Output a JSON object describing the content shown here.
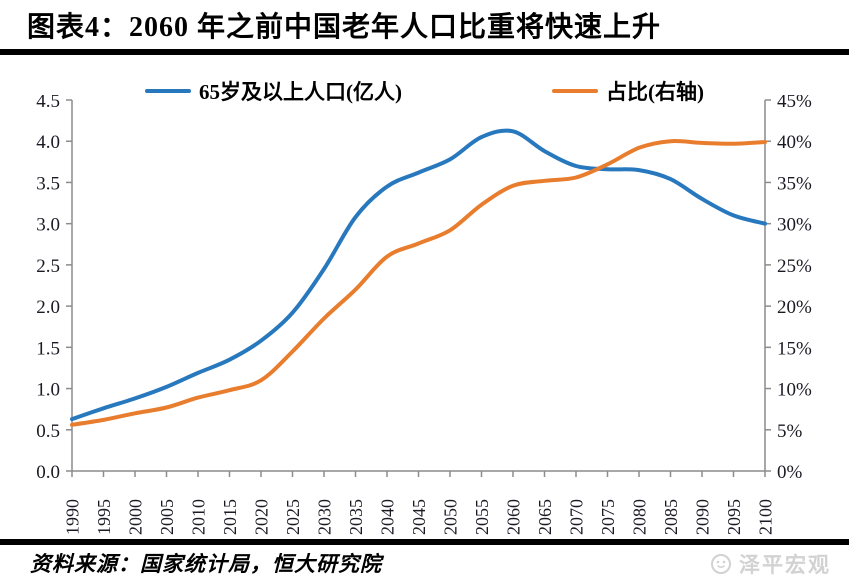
{
  "title": "图表4：2060 年之前中国老年人口比重将快速上升",
  "source": "资料来源：国家统计局，恒大研究院",
  "watermark": "泽平宏观",
  "colors": {
    "blue": "#2878BE",
    "orange": "#E87D2E",
    "axis": "#8C8C8C",
    "tick_text": "#1a1a24",
    "watermark_gray": "#d2d2d2"
  },
  "chart_data": {
    "type": "line",
    "title": "2060 年之前中国老年人口比重将快速上升",
    "x": [
      1990,
      1995,
      2000,
      2005,
      2010,
      2015,
      2020,
      2025,
      2030,
      2035,
      2040,
      2045,
      2050,
      2055,
      2060,
      2065,
      2070,
      2075,
      2080,
      2085,
      2090,
      2095,
      2100
    ],
    "series": [
      {
        "name": "65岁及以上人口(亿人)",
        "axis": "left",
        "color_key": "blue",
        "values": [
          0.63,
          0.76,
          0.88,
          1.02,
          1.19,
          1.35,
          1.58,
          1.92,
          2.45,
          3.08,
          3.45,
          3.62,
          3.78,
          4.05,
          4.12,
          3.88,
          3.7,
          3.66,
          3.65,
          3.54,
          3.3,
          3.1,
          3.0
        ]
      },
      {
        "name": "占比(右轴)",
        "axis": "right",
        "color_key": "orange",
        "values": [
          5.6,
          6.2,
          7.0,
          7.7,
          8.9,
          9.8,
          11.0,
          14.5,
          18.5,
          22.0,
          26.0,
          27.6,
          29.2,
          32.3,
          34.6,
          35.2,
          35.6,
          37.2,
          39.2,
          40.0,
          39.8,
          39.7,
          39.9
        ]
      }
    ],
    "left_axis": {
      "min": 0,
      "max": 4.5,
      "step": 0.5,
      "tick_labels": [
        "0.0",
        "0.5",
        "1.0",
        "1.5",
        "2.0",
        "2.5",
        "3.0",
        "3.5",
        "4.0",
        "4.5"
      ]
    },
    "right_axis": {
      "min": 0,
      "max": 45,
      "step": 5,
      "tick_labels": [
        "0%",
        "5%",
        "10%",
        "15%",
        "20%",
        "25%",
        "30%",
        "35%",
        "40%",
        "45%"
      ]
    },
    "x_tick_labels": [
      "1990",
      "1995",
      "2000",
      "2005",
      "2010",
      "2015",
      "2020",
      "2025",
      "2030",
      "2035",
      "2040",
      "2045",
      "2050",
      "2055",
      "2060",
      "2065",
      "2070",
      "2075",
      "2080",
      "2085",
      "2090",
      "2095",
      "2100"
    ],
    "legend_position": "top",
    "grid": false
  }
}
